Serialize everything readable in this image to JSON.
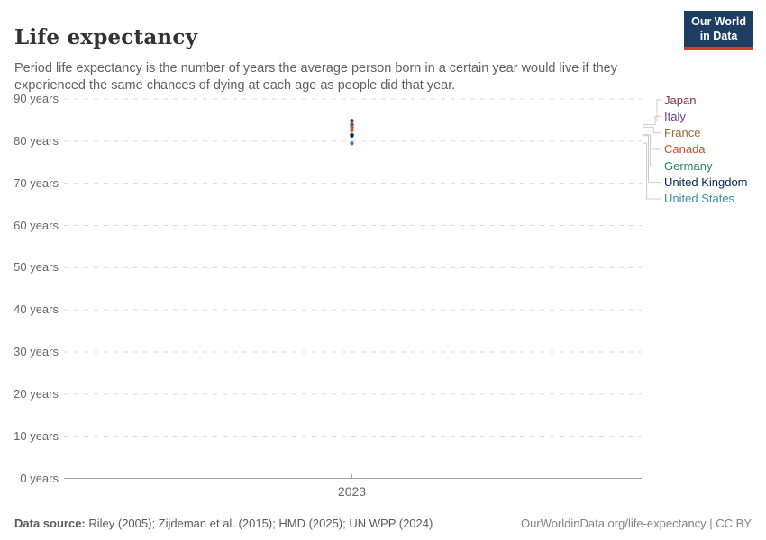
{
  "header": {
    "title": "Life expectancy",
    "subtitle": "Period life expectancy is the number of years the average person born in a certain year would live if they experienced the same chances of dying at each age as people did that year.",
    "logo": {
      "line1": "Our World",
      "line2": "in Data",
      "bg_color": "#1d3d63",
      "accent_color": "#d93b2b"
    }
  },
  "chart_data": {
    "type": "scatter",
    "title": "Life expectancy",
    "x": [
      2023
    ],
    "x_tick_label": "2023",
    "xlabel": "",
    "ylabel": "",
    "ylim": [
      0,
      90
    ],
    "y_tick_step": 10,
    "y_tick_labels": [
      "0 years",
      "10 years",
      "20 years",
      "30 years",
      "40 years",
      "50 years",
      "60 years",
      "70 years",
      "80 years",
      "90 years"
    ],
    "grid": true,
    "grid_style": "dashed",
    "legend_position": "right",
    "series": [
      {
        "name": "Japan",
        "color": "#883039",
        "values": [
          84.8
        ]
      },
      {
        "name": "Italy",
        "color": "#6D3E91",
        "values": [
          83.9
        ]
      },
      {
        "name": "France",
        "color": "#996D39",
        "values": [
          83.3
        ]
      },
      {
        "name": "Canada",
        "color": "#CF4B31",
        "values": [
          82.6
        ]
      },
      {
        "name": "Germany",
        "color": "#2C8465",
        "values": [
          81.5
        ]
      },
      {
        "name": "United Kingdom",
        "color": "#00295B",
        "values": [
          81.3
        ]
      },
      {
        "name": "United States",
        "color": "#3C8DA3",
        "values": [
          79.5
        ]
      }
    ]
  },
  "footer": {
    "source_label": "Data source:",
    "source_text": " Riley (2005); Zijdeman et al. (2015); HMD (2025); UN WPP (2024)",
    "rights": "OurWorldinData.org/life-expectancy | CC BY"
  }
}
